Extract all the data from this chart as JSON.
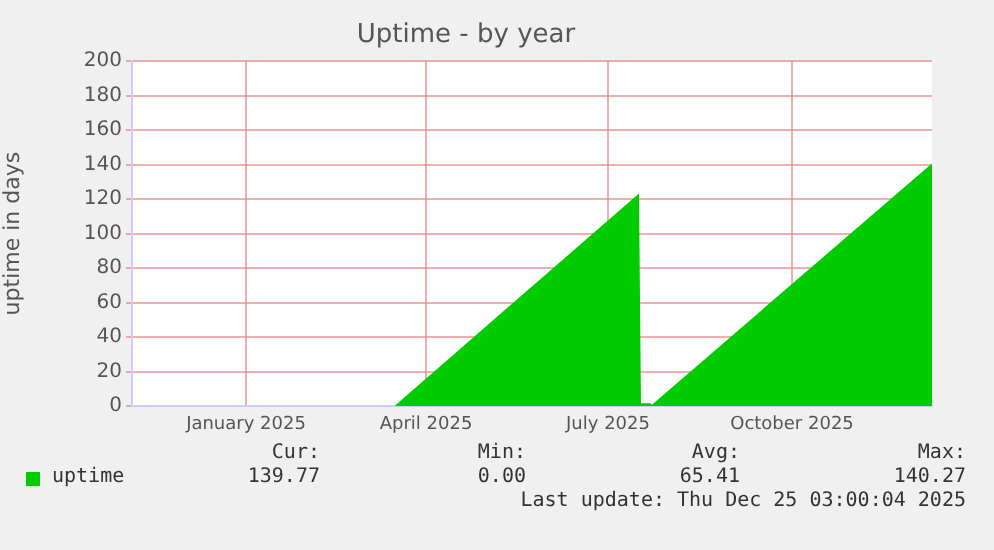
{
  "chart_data": {
    "type": "area",
    "title": "Uptime - by year",
    "ylabel": "uptime in days",
    "xlim": [
      "2024-11-20",
      "2025-12-25"
    ],
    "xticks": [
      {
        "value": "2025-01-16",
        "label": "January 2025"
      },
      {
        "value": "2025-04-16",
        "label": "April 2025"
      },
      {
        "value": "2025-07-16",
        "label": "July 2025"
      },
      {
        "value": "2025-10-16",
        "label": "October 2025"
      }
    ],
    "ylim": [
      0,
      200
    ],
    "yticks": [
      0,
      20,
      40,
      60,
      80,
      100,
      120,
      140,
      160,
      180,
      200
    ],
    "grid": true,
    "legend": "bottom left",
    "series": [
      {
        "name": "uptime",
        "color": "#00cc00",
        "x": [
          "2025-04-01",
          "2025-07-31",
          "2025-08-01",
          "2025-08-06",
          "2025-08-07",
          "2025-12-25"
        ],
        "values": [
          0,
          122,
          1,
          1,
          0,
          140
        ]
      }
    ],
    "annotations": [
      "Cur:",
      "Min:",
      "Avg:",
      "Max:",
      "139.77",
      "0.00",
      "65.41",
      "140.27",
      "Last update: Thu Dec 25 03:00:04 2025"
    ]
  }
}
